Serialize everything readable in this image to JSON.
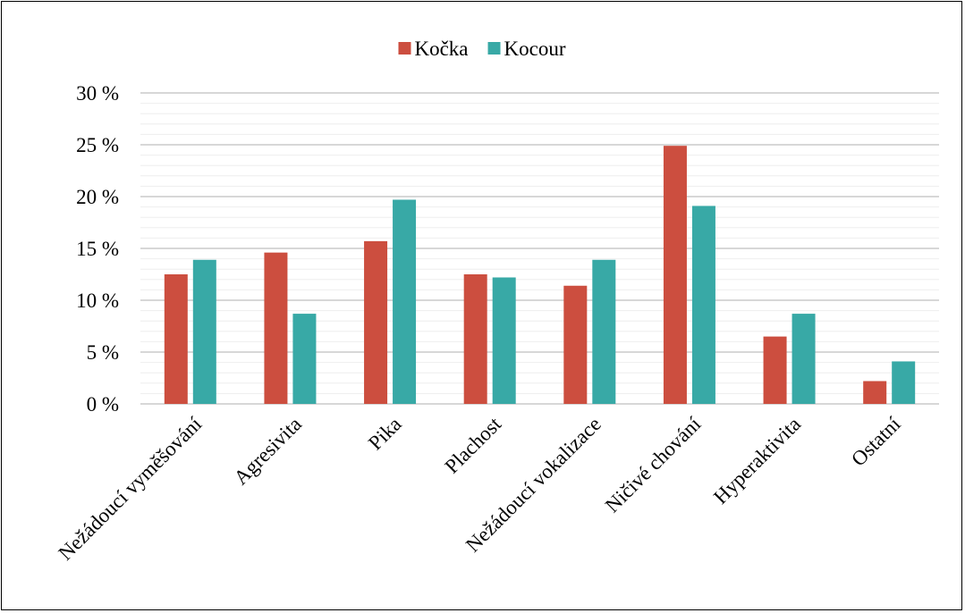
{
  "chart_data": {
    "type": "bar",
    "categories": [
      "Nežádoucí vyměšování",
      "Agresivita",
      "Pika",
      "Plachost",
      "Nežádoucí vokalizace",
      "Ničivé chování",
      "Hyperaktivita",
      "Ostatní"
    ],
    "series": [
      {
        "name": "Kočka",
        "values": [
          12.5,
          14.6,
          15.7,
          12.5,
          11.4,
          24.9,
          6.5,
          2.2
        ],
        "color": "#cc4e3f"
      },
      {
        "name": "Kocour",
        "values": [
          13.9,
          8.7,
          19.7,
          12.2,
          13.9,
          19.1,
          8.7,
          4.1
        ],
        "color": "#38a9a6"
      }
    ],
    "y_ticks": [
      "0 %",
      "5 %",
      "10 %",
      "15 %",
      "20 %",
      "25 %",
      "30 %"
    ],
    "ylim": [
      0,
      30
    ],
    "y_major_step": 5,
    "y_minor_step": 1,
    "grid": true,
    "legend_position": "top-center",
    "major_grid_color": "#bfbfbf",
    "minor_grid_color": "#eeeeee"
  }
}
